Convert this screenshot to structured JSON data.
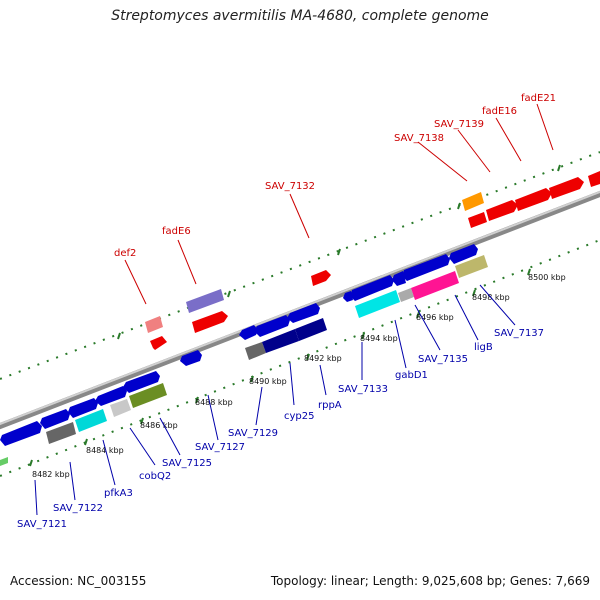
{
  "title": "Streptomyces avermitilis MA-4680, complete genome",
  "footer": {
    "accession": "Accession: NC_003155",
    "summary": "Topology: linear; Length: 9,025,608 bp; Genes: 7,669"
  },
  "ticks": [
    "8482 kbp",
    "8484 kbp",
    "8486 kbp",
    "8488 kbp",
    "8490 kbp",
    "8492 kbp",
    "8494 kbp",
    "8496 kbp",
    "8498 kbp",
    "8500 kbp"
  ],
  "genes_forward": [
    "def2",
    "fadE6",
    "SAV_7132",
    "SAV_7138",
    "SAV_7139",
    "fadE16",
    "fadE21"
  ],
  "genes_reverse": [
    "SAV_7121",
    "SAV_7122",
    "pfkA3",
    "cobQ2",
    "SAV_7125",
    "SAV_7127",
    "SAV_7129",
    "cyp25",
    "rppA",
    "SAV_7133",
    "gabD1",
    "SAV_7135",
    "ligB",
    "SAV_7137"
  ],
  "colors": {
    "forward_label": "#cc0000",
    "reverse_label": "#0000aa",
    "track_dots": "#2a7a2a",
    "axis": "#999999"
  }
}
